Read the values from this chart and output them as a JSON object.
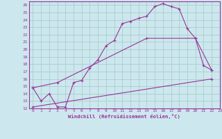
{
  "title": "",
  "xlabel": "Windchill (Refroidissement éolien,°C)",
  "background_color": "#cce8ee",
  "grid_color": "#aacccc",
  "line_color": "#993399",
  "spine_color": "#993399",
  "xlim": [
    -0.5,
    23
  ],
  "ylim": [
    12,
    26.5
  ],
  "xticks": [
    0,
    1,
    2,
    3,
    4,
    5,
    6,
    7,
    8,
    9,
    10,
    11,
    12,
    13,
    14,
    15,
    16,
    17,
    18,
    19,
    20,
    21,
    22,
    23
  ],
  "yticks": [
    12,
    13,
    14,
    15,
    16,
    17,
    18,
    19,
    20,
    21,
    22,
    23,
    24,
    25,
    26
  ],
  "series": [
    {
      "x": [
        0,
        1,
        2,
        3,
        4,
        5,
        6,
        7,
        8,
        9,
        10,
        11,
        12,
        13,
        14,
        15,
        16,
        17,
        18,
        19,
        20,
        21,
        22
      ],
      "y": [
        14.8,
        13.0,
        14.0,
        12.2,
        12.2,
        15.5,
        15.8,
        17.5,
        18.6,
        20.5,
        21.2,
        23.5,
        23.8,
        24.2,
        24.5,
        25.8,
        26.2,
        25.8,
        25.5,
        22.8,
        21.5,
        17.8,
        17.2
      ]
    },
    {
      "x": [
        0,
        3,
        14,
        20,
        22
      ],
      "y": [
        14.8,
        15.5,
        21.5,
        21.5,
        17.2
      ]
    },
    {
      "x": [
        0,
        22
      ],
      "y": [
        12.2,
        16.0
      ]
    }
  ]
}
